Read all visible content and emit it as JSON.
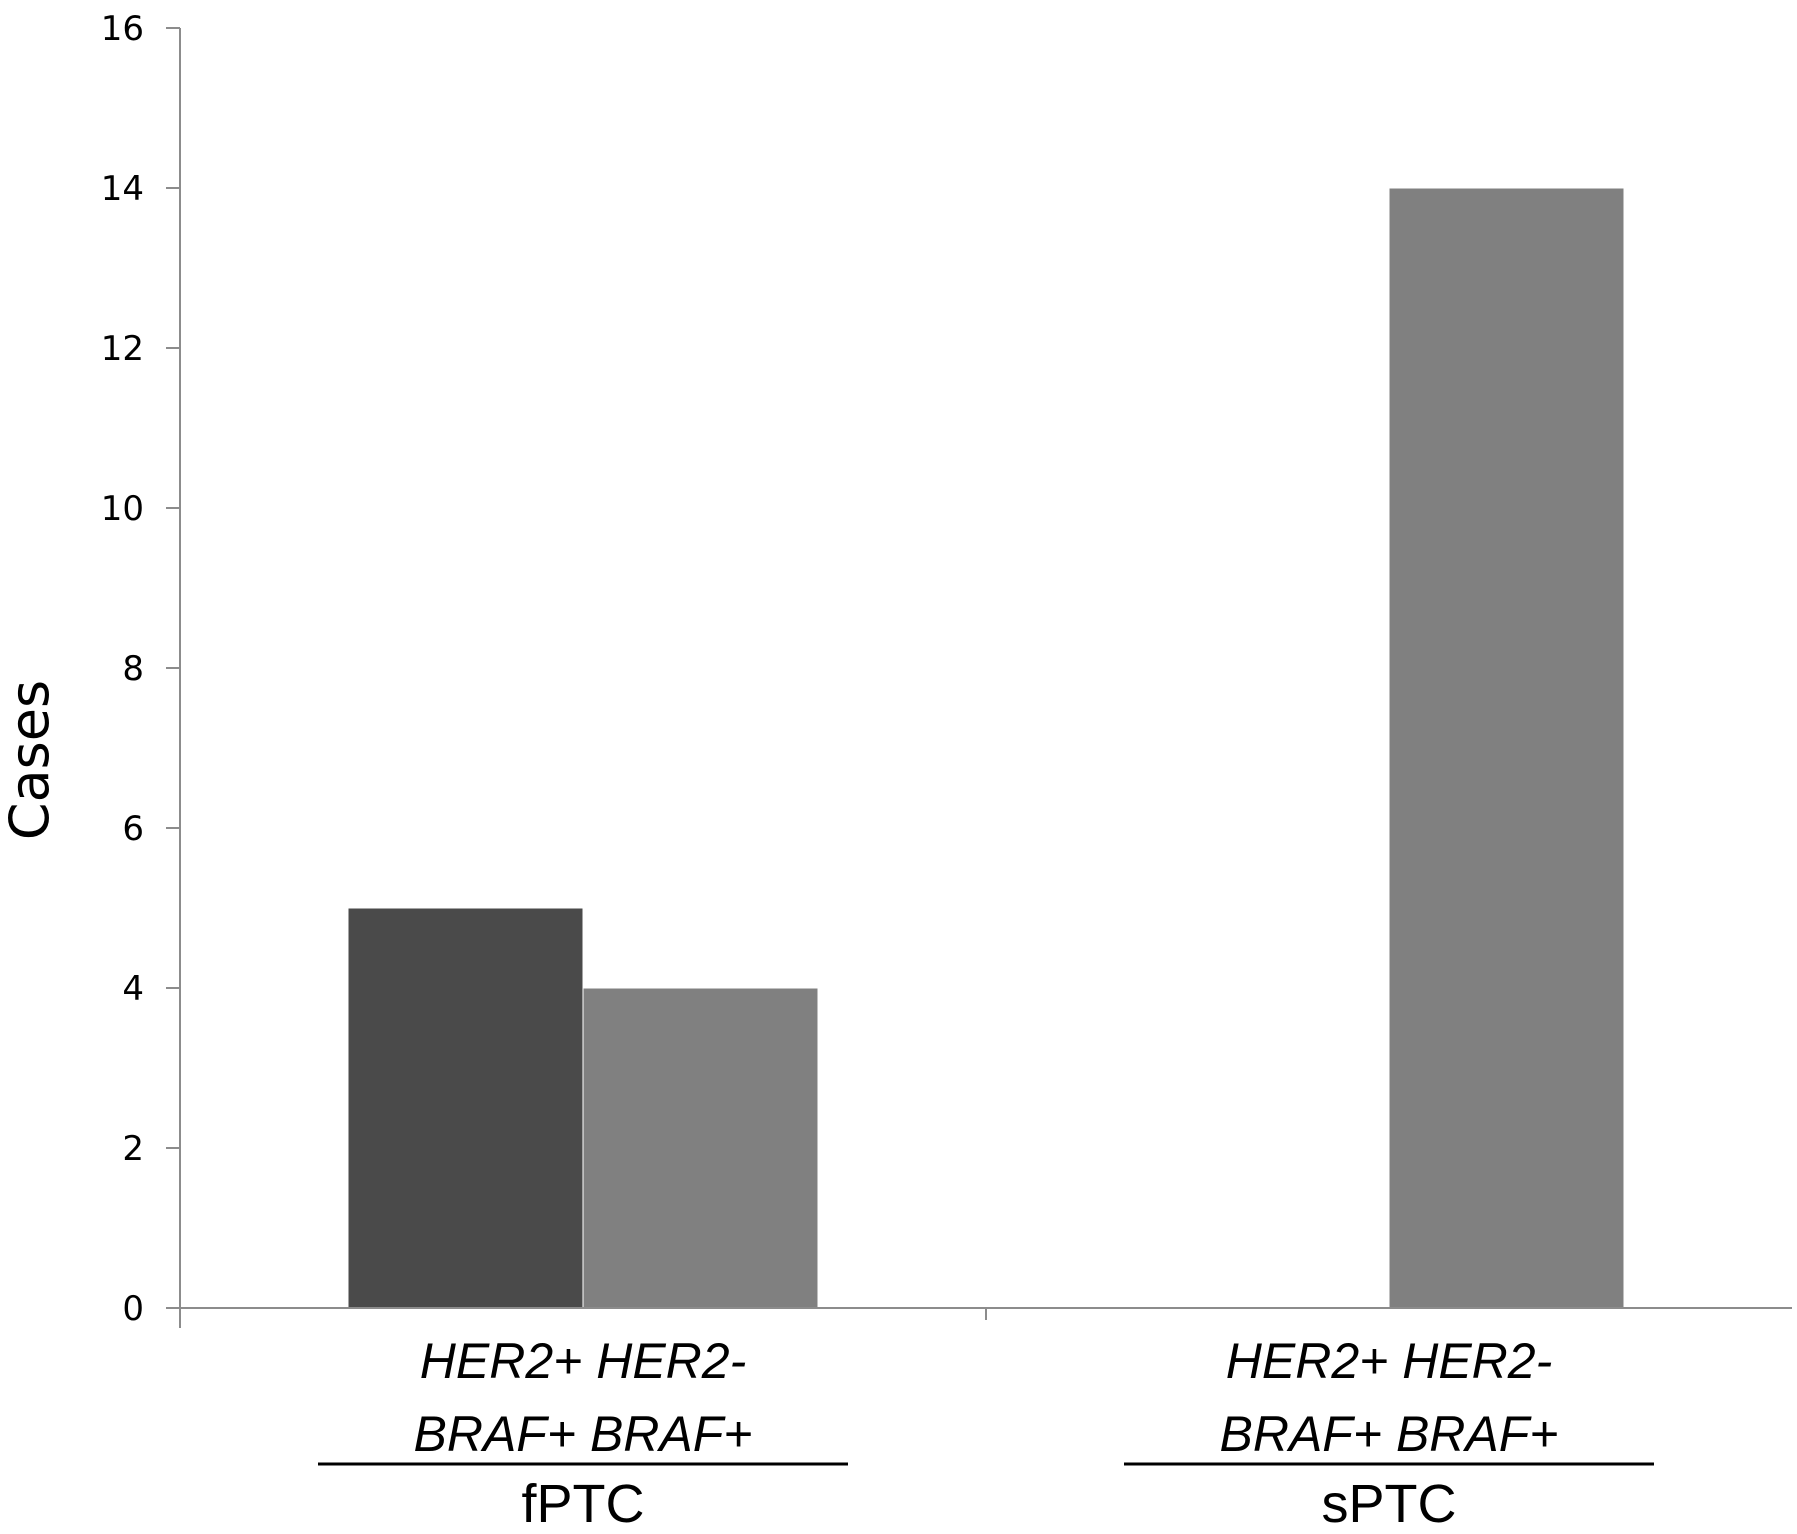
{
  "chart_data": {
    "type": "bar",
    "ylabel": "Cases",
    "ylim": [
      0,
      16
    ],
    "yticks": [
      0,
      2,
      4,
      6,
      8,
      10,
      12,
      14,
      16
    ],
    "grid": false,
    "groups": [
      {
        "name": "fPTC",
        "categories": [
          "HER2+ BRAF+",
          "HER2- BRAF+"
        ],
        "label_lines": [
          "HER2+ HER2-",
          "BRAF+ BRAF+"
        ]
      },
      {
        "name": "sPTC",
        "categories": [
          "HER2+ BRAF+",
          "HER2- BRAF+"
        ],
        "label_lines": [
          "HER2+ HER2-",
          "BRAF+ BRAF+"
        ]
      }
    ],
    "series": [
      {
        "values": [
          5,
          0
        ],
        "color": "#4a4a4a"
      },
      {
        "values": [
          4,
          14
        ],
        "color": "#808080"
      }
    ]
  }
}
